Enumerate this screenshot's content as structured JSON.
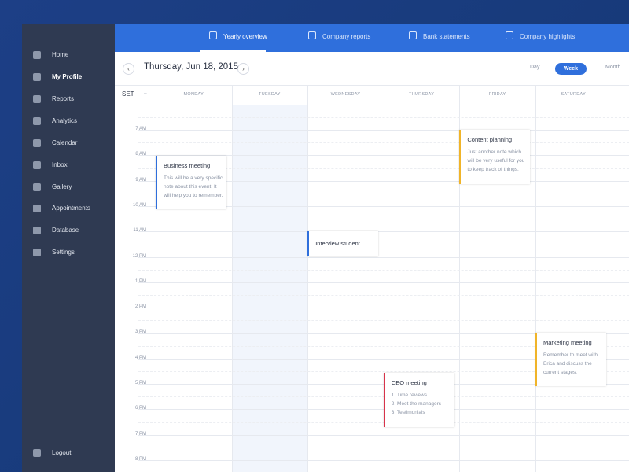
{
  "sidebar": {
    "items": [
      "Home",
      "My Profile",
      "Reports",
      "Analytics",
      "Calendar",
      "Inbox",
      "Gallery",
      "Appointments",
      "Database",
      "Settings"
    ],
    "logout": "Logout"
  },
  "tabs": [
    "Yearly overview",
    "Company reports",
    "Bank statements",
    "Company highlights"
  ],
  "header": {
    "date": "Thursday, Jun 18, 2015",
    "views": [
      "Day",
      "Week",
      "Month"
    ]
  },
  "calendar": {
    "set_label": "SET",
    "days": [
      "MONDAY",
      "TUESDAY",
      "WEDNESDAY",
      "THURSDAY",
      "FRIDAY",
      "SATURDAY"
    ],
    "times": [
      "7 AM",
      "8 AM",
      "9 AM",
      "10 AM",
      "11 AM",
      "12 PM",
      "1 PM",
      "2 PM",
      "3 PM",
      "4 PM",
      "5 PM",
      "6 PM",
      "7 PM",
      "8 PM"
    ],
    "events": [
      {
        "title": "Business meeting",
        "lines": [
          "This will be a very specific",
          "note about this event. It",
          "will help you to remember."
        ]
      },
      {
        "title": "Interview student",
        "lines": []
      },
      {
        "title": "Content planning",
        "lines": [
          "Just another note which",
          "will be very useful for you",
          "to keep track of things."
        ]
      },
      {
        "title": "Marketing meeting",
        "lines": [
          "Remember to meet with",
          "Erica and discuss the",
          "current stages."
        ]
      },
      {
        "title": "CEO meeting",
        "lines": [
          "1. Time reviews",
          "2. Meet the managers",
          "3. Testimonials"
        ]
      }
    ]
  }
}
